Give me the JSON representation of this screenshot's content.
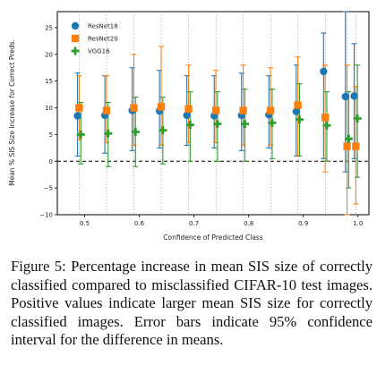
{
  "chart_data": {
    "type": "scatter",
    "xlabel": "Confidence of Predicted Class",
    "ylabel": "Mean % SIS Size Increase for Correct Preds.",
    "xlim": [
      0.45,
      1.02
    ],
    "ylim": [
      -10,
      28
    ],
    "xticks": [
      0.5,
      0.6,
      0.7,
      0.8,
      0.9,
      1.0
    ],
    "xtick_labels": [
      "0.5",
      "0.6",
      "0.7",
      "0.8",
      "0.9",
      "1.0"
    ],
    "yticks": [
      -10,
      -5,
      0,
      5,
      10,
      15,
      20,
      25
    ],
    "ytick_labels": [
      "−10",
      "−5",
      "0",
      "5",
      "10",
      "15",
      "20",
      "25"
    ],
    "reference_line_y": 0,
    "legend_position": "top-left",
    "series": [
      {
        "name": "ResNet18",
        "marker": "circle",
        "color": "#1f77b4",
        "x": [
          0.487,
          0.537,
          0.587,
          0.637,
          0.687,
          0.737,
          0.787,
          0.837,
          0.887,
          0.937,
          0.977,
          0.993
        ],
        "y": [
          8.5,
          8.6,
          9.5,
          9.4,
          8.6,
          8.5,
          8.6,
          8.7,
          9.3,
          16.8,
          12.1,
          12.2
        ],
        "lower": [
          1.0,
          1.5,
          2.0,
          2.5,
          3.0,
          2.5,
          2.0,
          2.5,
          1.0,
          0.5,
          -2.0,
          0.5
        ],
        "upper": [
          16.5,
          16.0,
          17.5,
          17.0,
          16.0,
          16.0,
          16.5,
          16.0,
          18.0,
          24.0,
          28.0,
          22.0
        ]
      },
      {
        "name": "ResNet20",
        "marker": "square",
        "color": "#ff7f0e",
        "x": [
          0.49,
          0.54,
          0.59,
          0.64,
          0.69,
          0.74,
          0.79,
          0.84,
          0.89,
          0.94,
          0.98,
          0.996
        ],
        "y": [
          10.0,
          9.5,
          10.0,
          10.2,
          9.8,
          9.5,
          9.5,
          9.5,
          10.5,
          8.2,
          2.8,
          2.8
        ],
        "lower": [
          4.0,
          3.5,
          3.0,
          3.0,
          3.5,
          3.5,
          3.0,
          3.0,
          1.0,
          -2.0,
          -10.0,
          -8.0
        ],
        "upper": [
          16.0,
          16.0,
          20.0,
          21.5,
          18.0,
          17.0,
          18.0,
          17.5,
          19.5,
          18.0,
          18.0,
          14.0
        ]
      },
      {
        "name": "VGG16",
        "marker": "plus",
        "color": "#2ca02c",
        "x": [
          0.493,
          0.543,
          0.593,
          0.643,
          0.693,
          0.743,
          0.793,
          0.843,
          0.893,
          0.943,
          0.983,
          0.999
        ],
        "y": [
          5.0,
          5.2,
          5.5,
          5.8,
          6.8,
          7.0,
          7.0,
          7.2,
          7.8,
          6.7,
          4.2,
          8.0
        ],
        "lower": [
          -0.5,
          -1.0,
          -1.0,
          -0.5,
          0.0,
          0.0,
          0.0,
          0.5,
          1.0,
          0.0,
          -5.0,
          -3.0
        ],
        "upper": [
          11.0,
          11.0,
          12.0,
          12.0,
          13.0,
          13.0,
          13.5,
          13.5,
          14.5,
          13.0,
          13.0,
          18.0
        ]
      }
    ]
  },
  "caption": "Figure 5: Percentage increase in mean SIS size of correctly classified compared to misclassified CIFAR-10 test images. Positive values indicate larger mean SIS size for correctly classified images. Error bars indicate 95% confidence interval for the difference in means."
}
